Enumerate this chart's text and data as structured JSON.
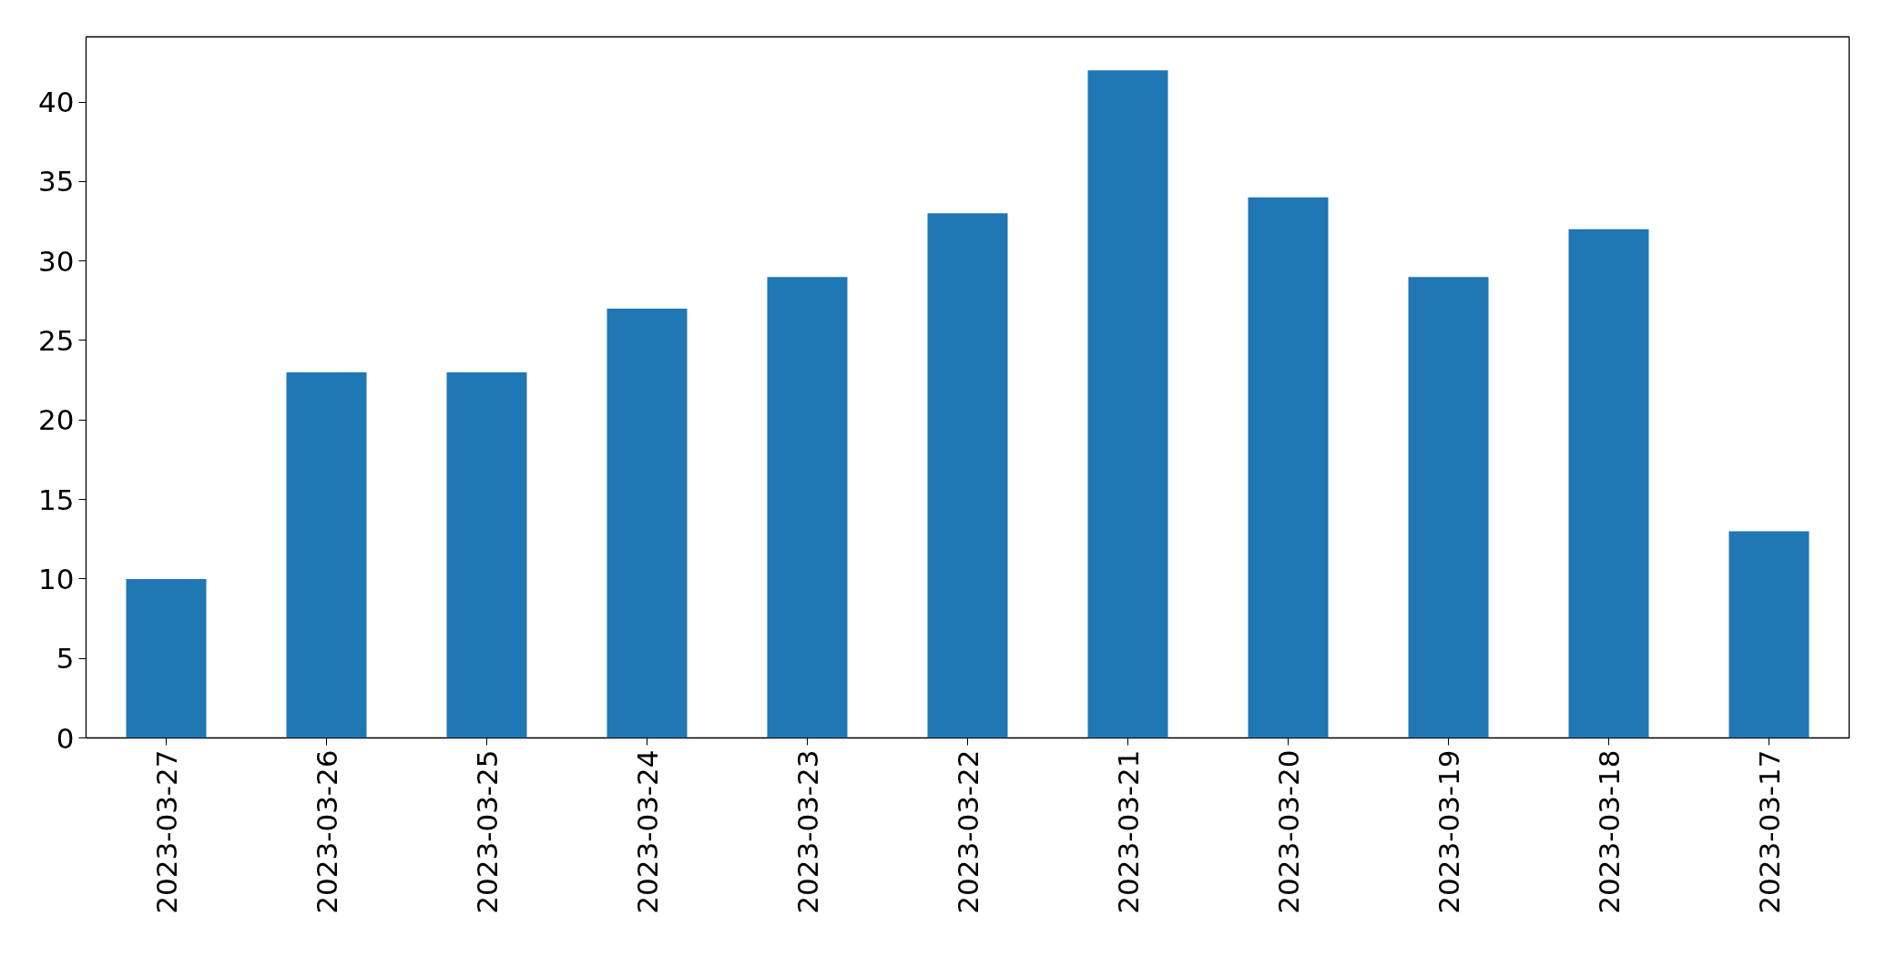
{
  "chart_data": {
    "type": "bar",
    "categories": [
      "2023-03-27",
      "2023-03-26",
      "2023-03-25",
      "2023-03-24",
      "2023-03-23",
      "2023-03-22",
      "2023-03-21",
      "2023-03-20",
      "2023-03-19",
      "2023-03-18",
      "2023-03-17"
    ],
    "values": [
      10,
      23,
      23,
      27,
      29,
      33,
      42,
      34,
      29,
      32,
      13
    ],
    "color": "#1f77b4",
    "ylim": [
      0,
      44.1
    ],
    "yticks": [
      0,
      5,
      10,
      15,
      20,
      25,
      30,
      35,
      40
    ],
    "grid": false
  }
}
